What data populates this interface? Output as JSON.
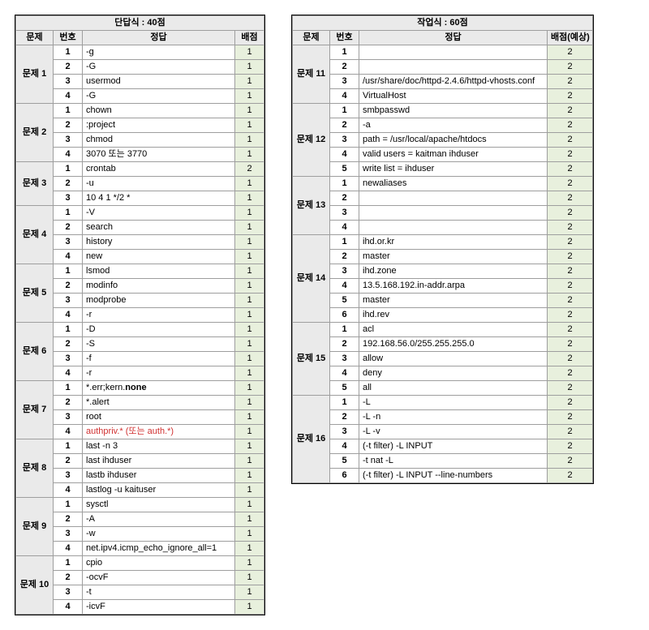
{
  "left": {
    "title": "단답식 : 40점",
    "widths": {
      "problem": 46,
      "num": 36,
      "answer": 188,
      "score": 36
    },
    "headers": {
      "problem": "문제",
      "num": "번호",
      "answer": "정답",
      "score": "배점"
    },
    "groups": [
      {
        "name": "문제 1",
        "rows": [
          {
            "num": "1",
            "answer": "-g",
            "score": "1"
          },
          {
            "num": "2",
            "answer": "-G",
            "score": "1"
          },
          {
            "num": "3",
            "answer": "usermod",
            "score": "1"
          },
          {
            "num": "4",
            "answer": "-G",
            "score": "1"
          }
        ]
      },
      {
        "name": "문제 2",
        "rows": [
          {
            "num": "1",
            "answer": "chown",
            "score": "1"
          },
          {
            "num": "2",
            "answer": ":project",
            "score": "1"
          },
          {
            "num": "3",
            "answer": "chmod",
            "score": "1"
          },
          {
            "num": "4",
            "answer": "3070 또는 3770",
            "score": "1"
          }
        ]
      },
      {
        "name": "문제 3",
        "rows": [
          {
            "num": "1",
            "answer": "crontab",
            "score": "2"
          },
          {
            "num": "2",
            "answer": "-u",
            "score": "1"
          },
          {
            "num": "3",
            "answer": "10 4 1 */2 *",
            "score": "1"
          }
        ]
      },
      {
        "name": "문제 4",
        "rows": [
          {
            "num": "1",
            "answer": "-V",
            "score": "1"
          },
          {
            "num": "2",
            "answer": "search",
            "score": "1"
          },
          {
            "num": "3",
            "answer": "history",
            "score": "1"
          },
          {
            "num": "4",
            "answer": "new",
            "score": "1"
          }
        ]
      },
      {
        "name": "문제 5",
        "rows": [
          {
            "num": "1",
            "answer": "lsmod",
            "score": "1"
          },
          {
            "num": "2",
            "answer": "modinfo",
            "score": "1"
          },
          {
            "num": "3",
            "answer": "modprobe",
            "score": "1"
          },
          {
            "num": "4",
            "answer": "-r",
            "score": "1"
          }
        ]
      },
      {
        "name": "문제 6",
        "rows": [
          {
            "num": "1",
            "answer": "-D",
            "score": "1"
          },
          {
            "num": "2",
            "answer": "-S",
            "score": "1"
          },
          {
            "num": "3",
            "answer": "-f",
            "score": "1"
          },
          {
            "num": "4",
            "answer": "-r",
            "score": "1"
          }
        ]
      },
      {
        "name": "문제 7",
        "rows": [
          {
            "num": "1",
            "answer_html": "*.err;kern.<b>none</b>",
            "score": "1"
          },
          {
            "num": "2",
            "answer": "*.alert",
            "score": "1"
          },
          {
            "num": "3",
            "answer": "root",
            "score": "1"
          },
          {
            "num": "4",
            "answer_html": "<span class='red'>authpriv.* (또는 auth.*)</span>",
            "score": "1"
          }
        ]
      },
      {
        "name": "문제 8",
        "rows": [
          {
            "num": "1",
            "answer": "last -n 3",
            "score": "1"
          },
          {
            "num": "2",
            "answer": "last ihduser",
            "score": "1"
          },
          {
            "num": "3",
            "answer": "lastb ihduser",
            "score": "1"
          },
          {
            "num": "4",
            "answer": "lastlog -u kaituser",
            "score": "1"
          }
        ]
      },
      {
        "name": "문제 9",
        "rows": [
          {
            "num": "1",
            "answer": "sysctl",
            "score": "1"
          },
          {
            "num": "2",
            "answer": "-A",
            "score": "1"
          },
          {
            "num": "3",
            "answer": "-w",
            "score": "1"
          },
          {
            "num": "4",
            "answer": "net.ipv4.icmp_echo_ignore_all=1",
            "score": "1"
          }
        ]
      },
      {
        "name": "문제 10",
        "rows": [
          {
            "num": "1",
            "answer": "cpio",
            "score": "1"
          },
          {
            "num": "2",
            "answer": "-ocvF",
            "score": "1"
          },
          {
            "num": "3",
            "answer": "-t",
            "score": "1"
          },
          {
            "num": "4",
            "answer": "-icvF",
            "score": "1"
          }
        ]
      }
    ]
  },
  "right": {
    "title": "작업식 : 60점",
    "widths": {
      "problem": 46,
      "num": 36,
      "answer": 232,
      "score": 56
    },
    "headers": {
      "problem": "문제",
      "num": "번호",
      "answer": "정답",
      "score": "배점(예상)"
    },
    "groups": [
      {
        "name": "문제 11",
        "rows": [
          {
            "num": "1",
            "answer": "",
            "score": "2"
          },
          {
            "num": "2",
            "answer": "",
            "score": "2"
          },
          {
            "num": "3",
            "answer": "/usr/share/doc/httpd-2.4.6/httpd-vhosts.conf",
            "score": "2"
          },
          {
            "num": "4",
            "answer": "VirtualHost",
            "score": "2"
          }
        ]
      },
      {
        "name": "문제 12",
        "rows": [
          {
            "num": "1",
            "answer": "smbpasswd",
            "score": "2"
          },
          {
            "num": "2",
            "answer": "-a",
            "score": "2"
          },
          {
            "num": "3",
            "answer": "path = /usr/local/apache/htdocs",
            "score": "2"
          },
          {
            "num": "4",
            "answer": "valid users = kaitman ihduser",
            "score": "2"
          },
          {
            "num": "5",
            "answer": "write list = ihduser",
            "score": "2"
          }
        ]
      },
      {
        "name": "문제 13",
        "rows": [
          {
            "num": "1",
            "answer": "newaliases",
            "score": "2"
          },
          {
            "num": "2",
            "answer": "",
            "score": "2"
          },
          {
            "num": "3",
            "answer": "",
            "score": "2"
          },
          {
            "num": "4",
            "answer": "",
            "score": "2"
          }
        ]
      },
      {
        "name": "문제 14",
        "rows": [
          {
            "num": "1",
            "answer": "ihd.or.kr",
            "score": "2"
          },
          {
            "num": "2",
            "answer": "master",
            "score": "2"
          },
          {
            "num": "3",
            "answer": "ihd.zone",
            "score": "2"
          },
          {
            "num": "4",
            "answer": "13.5.168.192.in-addr.arpa",
            "score": "2"
          },
          {
            "num": "5",
            "answer": "master",
            "score": "2"
          },
          {
            "num": "6",
            "answer": "ihd.rev",
            "score": "2"
          }
        ]
      },
      {
        "name": "문제 15",
        "rows": [
          {
            "num": "1",
            "answer": "acl",
            "score": "2"
          },
          {
            "num": "2",
            "answer": "192.168.56.0/255.255.255.0",
            "score": "2"
          },
          {
            "num": "3",
            "answer": "allow",
            "score": "2"
          },
          {
            "num": "4",
            "answer": "deny",
            "score": "2"
          },
          {
            "num": "5",
            "answer": "all",
            "score": "2"
          }
        ]
      },
      {
        "name": "문제 16",
        "rows": [
          {
            "num": "1",
            "answer": "-L",
            "score": "2"
          },
          {
            "num": "2",
            "answer": "-L -n",
            "score": "2"
          },
          {
            "num": "3",
            "answer": "-L -v",
            "score": "2"
          },
          {
            "num": "4",
            "answer": "(-t filter) -L INPUT",
            "score": "2"
          },
          {
            "num": "5",
            "answer": "-t nat -L",
            "score": "2"
          },
          {
            "num": "6",
            "answer": "(-t filter) -L INPUT --line-numbers",
            "score": "2"
          }
        ]
      }
    ]
  }
}
